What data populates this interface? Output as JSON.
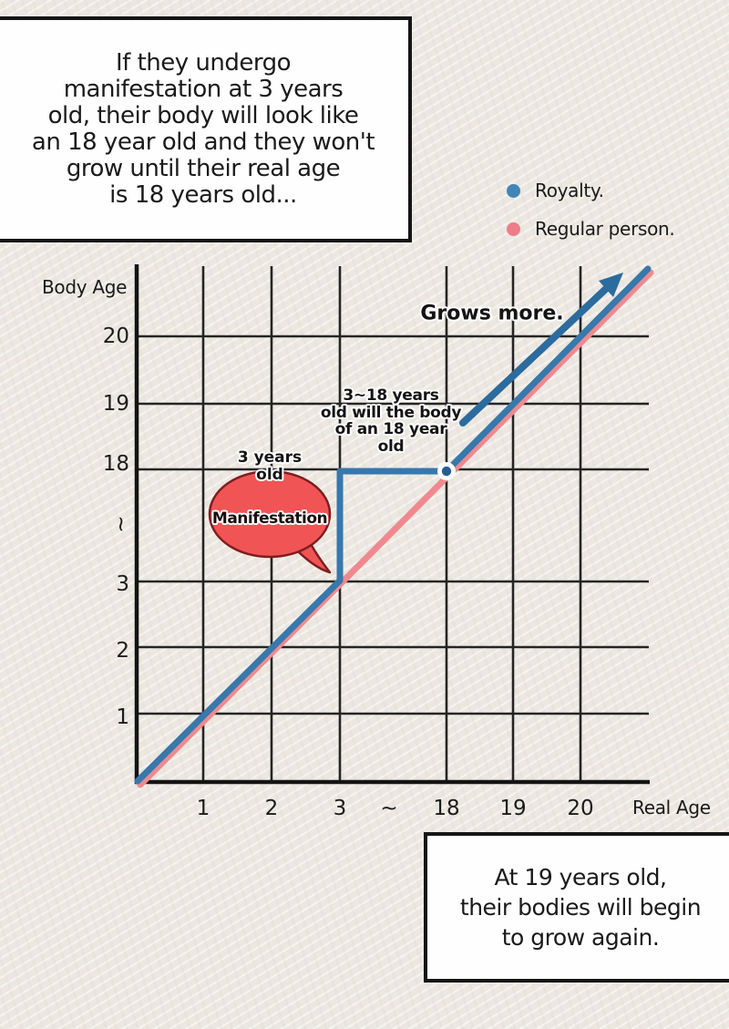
{
  "page": {
    "background_color": "#ece8e1",
    "panel_fill": "#fefefe",
    "panel_border": "#151515"
  },
  "top_note": {
    "lines": [
      "If they undergo",
      "manifestation at 3 years",
      "old, their body will look like",
      "an 18 year old and they won't",
      "grow until their real age",
      "is 18 years old..."
    ]
  },
  "bottom_note": {
    "lines": [
      "At 19 years old,",
      "their bodies will begin",
      "to grow again."
    ]
  },
  "legend": {
    "items": [
      {
        "label": "Royalty.",
        "color": "#4285b6"
      },
      {
        "label": "Regular person.",
        "color": "#ed7d88"
      }
    ]
  },
  "chart_data": {
    "type": "line",
    "title": "",
    "x_axis": {
      "label": "Real Age",
      "ticks": [
        "1",
        "2",
        "3",
        "~",
        "18",
        "19",
        "20"
      ],
      "break_between": [
        "3",
        "18"
      ]
    },
    "y_axis": {
      "label": "Body Age",
      "ticks": [
        "20",
        "19",
        "18",
        "~",
        "3",
        "2",
        "1"
      ],
      "break_between": [
        "18",
        "3"
      ]
    },
    "grid": "on",
    "series": [
      {
        "name": "Royalty.",
        "color": "#3878ab",
        "points": [
          [
            0,
            0
          ],
          [
            3,
            3
          ],
          [
            3,
            18
          ],
          [
            18,
            18
          ],
          [
            21,
            21
          ]
        ]
      },
      {
        "name": "Regular person.",
        "color": "#f0898f",
        "points": [
          [
            0,
            0
          ],
          [
            21,
            21
          ]
        ]
      }
    ],
    "marker_point": {
      "x": 18,
      "y": 18,
      "ring_color": "#ffffff",
      "dot_color": "#275e90"
    },
    "annotations": {
      "growth_note": {
        "text": "Grows more.",
        "arrow_color": "#2c6b9e"
      },
      "plateau_note": {
        "lines": [
          "3~18 years",
          "old will the body",
          "of an 18 year",
          "old"
        ]
      },
      "manifestation_bubble": {
        "text": "Manifestation",
        "label_above_lines": [
          "3 years",
          "old"
        ],
        "fill_color": "#f15454",
        "border_color": "#7e1d20"
      }
    }
  }
}
